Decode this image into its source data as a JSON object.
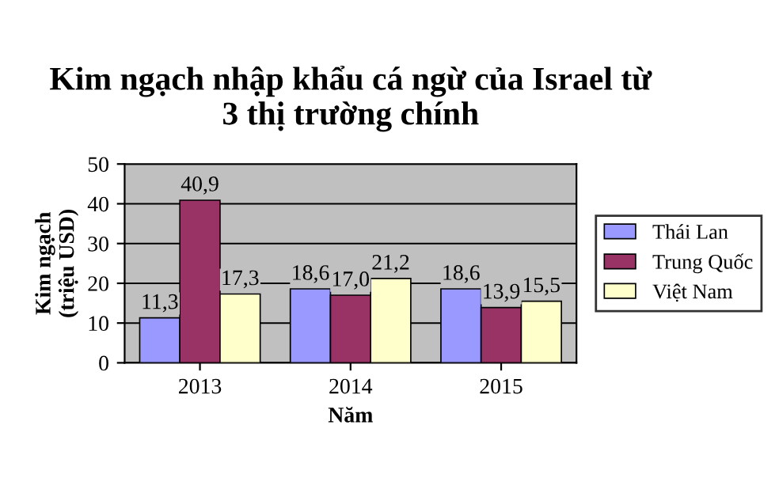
{
  "chart_data": {
    "type": "bar",
    "title": "Kim ngạch nhập khẩu cá ngừ của Israel từ\n3 thị trường chính",
    "xlabel": "Năm",
    "ylabel": "Kim ngạch\n(triệu USD)",
    "categories": [
      "2013",
      "2014",
      "2015"
    ],
    "series": [
      {
        "name": "Thái Lan",
        "color": "#9999ff",
        "values": [
          11.3,
          18.6,
          18.6
        ],
        "value_labels": [
          "11,3",
          "18,6",
          "18,6"
        ]
      },
      {
        "name": "Trung Quốc",
        "color": "#993366",
        "values": [
          40.9,
          17.0,
          13.9
        ],
        "value_labels": [
          "40,9",
          "17,0",
          "13,9"
        ]
      },
      {
        "name": "Việt Nam",
        "color": "#ffffcc",
        "values": [
          17.3,
          21.2,
          15.5
        ],
        "value_labels": [
          "17,3",
          "21,2",
          "15,5"
        ]
      }
    ],
    "ylim": [
      0,
      50
    ],
    "yticks": [
      0,
      10,
      20,
      30,
      40,
      50
    ],
    "grid": "y",
    "legend": "right"
  }
}
